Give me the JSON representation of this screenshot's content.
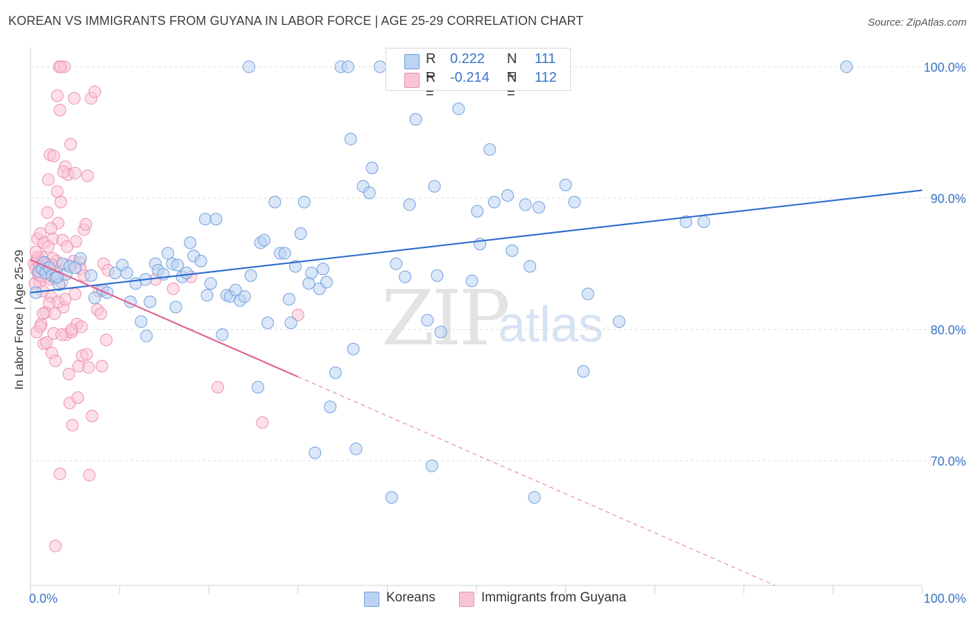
{
  "title": "KOREAN VS IMMIGRANTS FROM GUYANA IN LABOR FORCE | AGE 25-29 CORRELATION CHART",
  "source": "Source: ZipAtlas.com",
  "watermark": {
    "zip": "ZIP",
    "atlas": "atlas"
  },
  "legend": {
    "r_label": "R =",
    "n_label": "N =",
    "series": [
      {
        "name": "Koreans",
        "r": "0.222",
        "n": "111",
        "fill": "#bcd3f3",
        "stroke": "#6f9ede"
      },
      {
        "name": "Immigrants from Guyana",
        "r": "-0.214",
        "n": "112",
        "fill": "#f9c4d5",
        "stroke": "#ec8fb0"
      }
    ]
  },
  "chart_data": {
    "type": "scatter",
    "title": "KOREAN VS IMMIGRANTS FROM GUYANA IN LABOR FORCE | AGE 25-29 CORRELATION CHART",
    "xlabel": "",
    "ylabel": "In Labor Force | Age 25-29",
    "xlim": [
      0,
      100
    ],
    "ylim": [
      60.5,
      101.5
    ],
    "x_tick_labels": [
      "0.0%",
      "100.0%"
    ],
    "y_ticks": [
      70,
      80,
      90,
      100
    ],
    "y_tick_labels": [
      "70.0%",
      "80.0%",
      "90.0%",
      "100.0%"
    ],
    "grid": true,
    "series": [
      {
        "name": "Koreans",
        "color": "#6f9ede",
        "trend": {
          "x0": 0.0,
          "y0": 82.8,
          "x1": 100.0,
          "y1": 90.6,
          "solid_until": 100.0
        },
        "points": [
          [
            0.6,
            82.8
          ],
          [
            0.9,
            84.4
          ],
          [
            1.3,
            84.6
          ],
          [
            1.5,
            85.1
          ],
          [
            1.7,
            84.3
          ],
          [
            2.1,
            84.7
          ],
          [
            2.4,
            84.1
          ],
          [
            2.8,
            83.9
          ],
          [
            3.2,
            83.4
          ],
          [
            3.6,
            85.0
          ],
          [
            4.0,
            84.2
          ],
          [
            4.4,
            84.8
          ],
          [
            5.0,
            84.7
          ],
          [
            5.6,
            85.4
          ],
          [
            6.8,
            84.1
          ],
          [
            7.2,
            82.4
          ],
          [
            8.1,
            83.0
          ],
          [
            8.6,
            82.8
          ],
          [
            9.5,
            84.3
          ],
          [
            10.3,
            84.9
          ],
          [
            10.8,
            84.3
          ],
          [
            11.2,
            82.1
          ],
          [
            11.8,
            83.5
          ],
          [
            12.4,
            80.6
          ],
          [
            12.9,
            83.8
          ],
          [
            13.0,
            79.5
          ],
          [
            13.4,
            82.1
          ],
          [
            14.0,
            85.0
          ],
          [
            14.3,
            84.5
          ],
          [
            14.9,
            84.2
          ],
          [
            15.4,
            85.8
          ],
          [
            15.9,
            85.0
          ],
          [
            16.3,
            81.7
          ],
          [
            16.5,
            84.9
          ],
          [
            17.0,
            84.0
          ],
          [
            17.5,
            84.3
          ],
          [
            17.9,
            86.6
          ],
          [
            18.3,
            85.6
          ],
          [
            19.1,
            85.2
          ],
          [
            19.6,
            88.4
          ],
          [
            19.8,
            82.6
          ],
          [
            20.2,
            83.5
          ],
          [
            20.8,
            88.4
          ],
          [
            21.5,
            79.6
          ],
          [
            22.0,
            82.6
          ],
          [
            22.4,
            82.5
          ],
          [
            23.0,
            83.0
          ],
          [
            23.5,
            82.2
          ],
          [
            24.0,
            82.5
          ],
          [
            24.7,
            84.1
          ],
          [
            25.5,
            75.6
          ],
          [
            25.8,
            86.6
          ],
          [
            26.2,
            86.8
          ],
          [
            26.6,
            80.5
          ],
          [
            27.4,
            89.7
          ],
          [
            28.0,
            85.8
          ],
          [
            28.5,
            85.8
          ],
          [
            29.0,
            82.3
          ],
          [
            29.2,
            80.5
          ],
          [
            29.7,
            84.8
          ],
          [
            30.3,
            87.3
          ],
          [
            30.7,
            89.7
          ],
          [
            31.2,
            83.5
          ],
          [
            31.5,
            84.3
          ],
          [
            31.9,
            70.6
          ],
          [
            32.4,
            83.1
          ],
          [
            32.8,
            84.6
          ],
          [
            33.2,
            83.6
          ],
          [
            33.6,
            74.1
          ],
          [
            34.2,
            76.7
          ],
          [
            34.8,
            100.0
          ],
          [
            35.6,
            100.0
          ],
          [
            35.9,
            94.5
          ],
          [
            36.2,
            78.5
          ],
          [
            36.5,
            70.9
          ],
          [
            37.3,
            90.9
          ],
          [
            38.0,
            90.4
          ],
          [
            38.3,
            92.3
          ],
          [
            39.2,
            100.0
          ],
          [
            40.5,
            67.2
          ],
          [
            41.0,
            85.0
          ],
          [
            42.0,
            84.0
          ],
          [
            42.5,
            89.5
          ],
          [
            43.2,
            96.0
          ],
          [
            44.5,
            80.7
          ],
          [
            45.0,
            69.6
          ],
          [
            45.3,
            90.9
          ],
          [
            45.6,
            84.1
          ],
          [
            46.0,
            79.8
          ],
          [
            48.0,
            96.8
          ],
          [
            49.5,
            83.7
          ],
          [
            50.1,
            89.0
          ],
          [
            50.4,
            86.5
          ],
          [
            51.5,
            93.7
          ],
          [
            52.0,
            89.7
          ],
          [
            53.5,
            90.2
          ],
          [
            54.0,
            86.0
          ],
          [
            55.5,
            89.5
          ],
          [
            56.0,
            84.8
          ],
          [
            56.5,
            67.2
          ],
          [
            57.0,
            89.3
          ],
          [
            60.0,
            91.0
          ],
          [
            61.0,
            89.7
          ],
          [
            62.0,
            76.8
          ],
          [
            62.5,
            82.7
          ],
          [
            66.0,
            80.6
          ],
          [
            73.5,
            88.2
          ],
          [
            75.5,
            88.2
          ],
          [
            91.5,
            100.0
          ],
          [
            3.0,
            84.0
          ],
          [
            24.5,
            100.0
          ]
        ]
      },
      {
        "name": "Immigrants from Guyana",
        "color": "#ec8fb0",
        "trend": {
          "x0": 0.0,
          "y0": 85.3,
          "x1": 100.0,
          "y1": 55.6,
          "solid_until": 30.0
        },
        "points": [
          [
            0.4,
            85.0
          ],
          [
            0.6,
            84.6
          ],
          [
            0.7,
            85.3
          ],
          [
            0.8,
            86.9
          ],
          [
            0.9,
            84.1
          ],
          [
            1.0,
            83.6
          ],
          [
            1.1,
            87.3
          ],
          [
            1.2,
            84.9
          ],
          [
            1.3,
            85.5
          ],
          [
            1.4,
            82.9
          ],
          [
            1.5,
            86.6
          ],
          [
            1.6,
            84.3
          ],
          [
            1.7,
            81.3
          ],
          [
            1.8,
            85.0
          ],
          [
            1.9,
            88.9
          ],
          [
            2.0,
            91.4
          ],
          [
            2.1,
            84.6
          ],
          [
            2.2,
            93.3
          ],
          [
            2.3,
            82.5
          ],
          [
            2.4,
            78.2
          ],
          [
            2.5,
            86.9
          ],
          [
            2.6,
            79.7
          ],
          [
            2.7,
            84.8
          ],
          [
            2.8,
            77.6
          ],
          [
            2.9,
            85.2
          ],
          [
            3.0,
            90.5
          ],
          [
            3.1,
            88.1
          ],
          [
            3.2,
            100.0
          ],
          [
            3.3,
            96.7
          ],
          [
            3.4,
            89.7
          ],
          [
            3.5,
            83.6
          ],
          [
            3.6,
            86.8
          ],
          [
            3.7,
            81.7
          ],
          [
            3.8,
            100.0
          ],
          [
            3.9,
            92.4
          ],
          [
            4.0,
            79.6
          ],
          [
            4.1,
            84.9
          ],
          [
            4.2,
            91.8
          ],
          [
            4.3,
            76.6
          ],
          [
            4.4,
            74.4
          ],
          [
            4.5,
            94.1
          ],
          [
            4.6,
            79.8
          ],
          [
            4.7,
            72.7
          ],
          [
            4.8,
            85.2
          ],
          [
            4.9,
            97.6
          ],
          [
            5.0,
            91.9
          ],
          [
            5.1,
            86.7
          ],
          [
            5.2,
            80.4
          ],
          [
            5.3,
            74.8
          ],
          [
            5.4,
            77.2
          ],
          [
            5.5,
            85.1
          ],
          [
            5.6,
            84.6
          ],
          [
            5.7,
            80.2
          ],
          [
            5.8,
            78.0
          ],
          [
            6.0,
            87.6
          ],
          [
            6.2,
            88.0
          ],
          [
            6.3,
            78.1
          ],
          [
            6.4,
            91.7
          ],
          [
            6.5,
            77.1
          ],
          [
            6.6,
            68.9
          ],
          [
            6.8,
            97.6
          ],
          [
            6.9,
            73.4
          ],
          [
            7.2,
            98.1
          ],
          [
            7.5,
            81.5
          ],
          [
            7.7,
            82.9
          ],
          [
            7.9,
            81.2
          ],
          [
            8.0,
            77.2
          ],
          [
            8.2,
            85.0
          ],
          [
            8.5,
            79.2
          ],
          [
            8.7,
            84.5
          ],
          [
            0.5,
            83.5
          ],
          [
            0.9,
            84.2
          ],
          [
            1.3,
            84.7
          ],
          [
            1.6,
            85.1
          ],
          [
            1.9,
            84.0
          ],
          [
            2.2,
            83.8
          ],
          [
            2.5,
            85.4
          ],
          [
            2.9,
            84.4
          ],
          [
            0.7,
            79.8
          ],
          [
            1.2,
            80.4
          ],
          [
            1.5,
            78.9
          ],
          [
            2.0,
            86.3
          ],
          [
            2.3,
            87.7
          ],
          [
            2.6,
            93.2
          ],
          [
            3.0,
            97.8
          ],
          [
            3.4,
            100.0
          ],
          [
            3.7,
            92.0
          ],
          [
            4.1,
            86.3
          ],
          [
            4.6,
            80.0
          ],
          [
            5.0,
            82.7
          ],
          [
            3.3,
            69.0
          ],
          [
            2.8,
            63.5
          ],
          [
            6.0,
            84.1
          ],
          [
            14.0,
            83.8
          ],
          [
            16.0,
            83.1
          ],
          [
            18.0,
            84.0
          ],
          [
            21.0,
            75.6
          ],
          [
            26.0,
            72.9
          ],
          [
            30.0,
            81.1
          ],
          [
            1.1,
            80.2
          ],
          [
            1.4,
            81.2
          ],
          [
            1.8,
            79.0
          ],
          [
            0.8,
            85.5
          ],
          [
            1.0,
            84.8
          ],
          [
            1.2,
            84.0
          ],
          [
            0.6,
            85.9
          ],
          [
            2.1,
            82.0
          ],
          [
            2.4,
            84.9
          ],
          [
            2.7,
            81.2
          ],
          [
            3.1,
            82.1
          ],
          [
            3.5,
            79.6
          ],
          [
            3.9,
            82.3
          ]
        ]
      }
    ]
  }
}
